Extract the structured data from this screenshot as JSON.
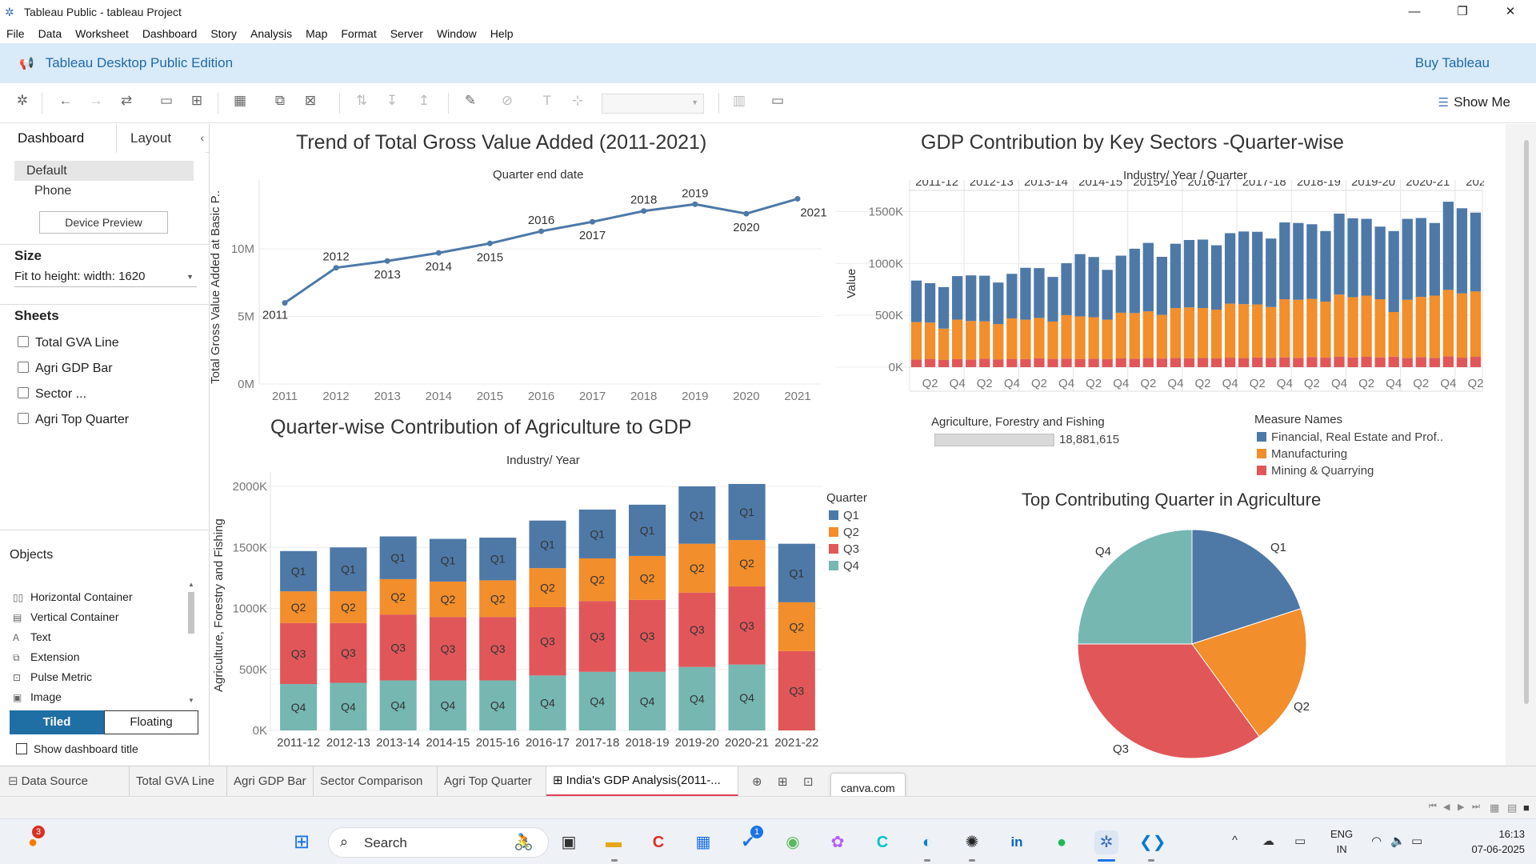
{
  "window": {
    "title": "Tableau Public - tableau Project"
  },
  "menu": [
    "File",
    "Data",
    "Worksheet",
    "Dashboard",
    "Story",
    "Analysis",
    "Map",
    "Format",
    "Server",
    "Window",
    "Help"
  ],
  "banner": {
    "label": "Tableau Desktop Public Edition",
    "buy": "Buy Tableau"
  },
  "toolbar": {
    "show_me": "Show Me"
  },
  "left_panel": {
    "tabs": [
      "Dashboard",
      "Layout"
    ],
    "devices": [
      "Default",
      "Phone"
    ],
    "device_preview": "Device Preview",
    "size_heading": "Size",
    "size_value": "Fit to height: width: 1620",
    "sheets_heading": "Sheets",
    "sheets": [
      "Total GVA Line",
      "Agri GDP Bar",
      "Sector ...",
      "Agri Top Quarter"
    ],
    "objects_heading": "Objects",
    "objects": [
      {
        "label": "Horizontal Container",
        "icon": "horizontal-container-icon"
      },
      {
        "label": "Vertical Container",
        "icon": "vertical-container-icon"
      },
      {
        "label": "Text",
        "icon": "text-icon"
      },
      {
        "label": "Extension",
        "icon": "extension-icon"
      },
      {
        "label": "Pulse Metric",
        "icon": "pulse-metric-icon"
      },
      {
        "label": "Image",
        "icon": "image-icon"
      }
    ],
    "tiled": "Tiled",
    "floating": "Floating",
    "show_title": "Show dashboard title"
  },
  "colors": {
    "blue": "#4e79a7",
    "orange": "#f28e2b",
    "red": "#e15759",
    "teal": "#76b7b2",
    "line": "#4e79a7"
  },
  "chart_data": [
    {
      "type": "line",
      "title": "Trend of Total Gross Value Added (2011-2021)",
      "xlabel": "Quarter end date",
      "ylabel": "Total Gross Value Added at Basic P..",
      "x": [
        "2011",
        "2012",
        "2013",
        "2014",
        "2015",
        "2016",
        "2017",
        "2018",
        "2019",
        "2020",
        "2021"
      ],
      "values": [
        6000000,
        8600000,
        9100000,
        9700000,
        10400000,
        11300000,
        12000000,
        12800000,
        13300000,
        12600000,
        13700000
      ],
      "yticks": [
        "0M",
        "5M",
        "10M"
      ],
      "ylim": [
        0,
        14500000
      ],
      "data_labels": true
    },
    {
      "type": "bar",
      "title": "GDP Contribution by Key Sectors -Quarter-wise",
      "xlabel": "Industry/ Year / Quarter",
      "ylabel": "Value",
      "years": [
        "2011-12",
        "2012-13",
        "2013-14",
        "2014-15",
        "2015-16",
        "2016-17",
        "2017-18",
        "2018-19",
        "2019-20",
        "2020-21",
        "2021.."
      ],
      "quarter_ticks": [
        "Q2",
        "Q4",
        "Q2",
        "Q4",
        "Q2",
        "Q4",
        "Q2",
        "Q4",
        "Q2",
        "Q4",
        "Q2",
        "Q4",
        "Q2",
        "Q4",
        "Q2",
        "Q4",
        "Q2",
        "Q4",
        "Q2",
        "Q4",
        "Q2"
      ],
      "yticks": [
        "0K",
        "500K",
        "1000K",
        "1500K"
      ],
      "ylim": [
        0,
        1650000
      ],
      "legend_title": "Measure Names",
      "series": [
        {
          "name": "Mining & Quarrying",
          "values": [
            75000,
            80000,
            72000,
            78000,
            75000,
            82000,
            76000,
            80000,
            78000,
            85000,
            80000,
            82000,
            80000,
            82000,
            78000,
            85000,
            82000,
            88000,
            84000,
            90000,
            86000,
            90000,
            85000,
            92000,
            88000,
            95000,
            90000,
            95000,
            90000,
            98000,
            92000,
            100000,
            95000,
            100000,
            95000,
            102000,
            90000,
            98000,
            90000,
            105000,
            92000,
            100000
          ]
        },
        {
          "name": "Manufacturing",
          "values": [
            360000,
            350000,
            300000,
            380000,
            370000,
            360000,
            340000,
            390000,
            380000,
            390000,
            360000,
            420000,
            410000,
            400000,
            380000,
            440000,
            440000,
            450000,
            420000,
            480000,
            490000,
            480000,
            470000,
            520000,
            520000,
            510000,
            490000,
            560000,
            560000,
            560000,
            540000,
            600000,
            580000,
            590000,
            560000,
            430000,
            560000,
            580000,
            600000,
            640000,
            620000,
            630000
          ]
        },
        {
          "name": "Financial, Real Estate and Prof..",
          "values": [
            400000,
            380000,
            400000,
            420000,
            440000,
            440000,
            400000,
            430000,
            500000,
            480000,
            430000,
            500000,
            600000,
            580000,
            480000,
            550000,
            620000,
            660000,
            560000,
            620000,
            650000,
            660000,
            620000,
            680000,
            700000,
            700000,
            660000,
            740000,
            740000,
            720000,
            680000,
            780000,
            760000,
            740000,
            700000,
            780000,
            780000,
            760000,
            700000,
            850000,
            820000,
            760000
          ]
        }
      ]
    },
    {
      "type": "bar",
      "title": "Quarter-wise Contribution of Agriculture to GDP",
      "xlabel": "Industry/ Year",
      "ylabel": "Agriculture, Forestry and Fishing",
      "categories": [
        "2011-12",
        "2012-13",
        "2013-14",
        "2014-15",
        "2015-16",
        "2016-17",
        "2017-18",
        "2018-19",
        "2019-20",
        "2020-21",
        "2021-22"
      ],
      "yticks": [
        "0K",
        "500K",
        "1000K",
        "1500K",
        "2000K"
      ],
      "ylim": [
        0,
        2000000
      ],
      "legend_title": "Quarter",
      "series": [
        {
          "name": "Q4",
          "values": [
            380000,
            390000,
            410000,
            410000,
            410000,
            450000,
            480000,
            480000,
            520000,
            540000,
            0
          ]
        },
        {
          "name": "Q3",
          "values": [
            500000,
            490000,
            540000,
            520000,
            520000,
            560000,
            580000,
            590000,
            610000,
            640000,
            650000
          ]
        },
        {
          "name": "Q2",
          "values": [
            260000,
            260000,
            290000,
            290000,
            300000,
            320000,
            350000,
            360000,
            400000,
            380000,
            400000
          ]
        },
        {
          "name": "Q1",
          "values": [
            330000,
            360000,
            350000,
            350000,
            350000,
            390000,
            400000,
            420000,
            470000,
            460000,
            480000
          ]
        }
      ]
    },
    {
      "type": "pie",
      "title": "Top Contributing Quarter in Agriculture",
      "categories": [
        "Q1",
        "Q2",
        "Q3",
        "Q4"
      ],
      "values": [
        20,
        20,
        35,
        25
      ]
    }
  ],
  "agri_filter": {
    "title": "Agriculture, Forestry and Fishing",
    "value": "18,881,615",
    "fraction": 0.62
  },
  "sheet_tabs": [
    "Data Source",
    "Total GVA Line",
    "Agri GDP Bar",
    "Sector Comparison",
    "Agri Top Quarter",
    "India's GDP Analysis(2011-..."
  ],
  "tooltip": "canva.com",
  "taskbar": {
    "search": "Search",
    "lang": [
      "ENG",
      "IN"
    ],
    "time": "16:13",
    "date": "07-06-2025",
    "badges": {
      "firefox": "3",
      "todo": "1"
    }
  }
}
